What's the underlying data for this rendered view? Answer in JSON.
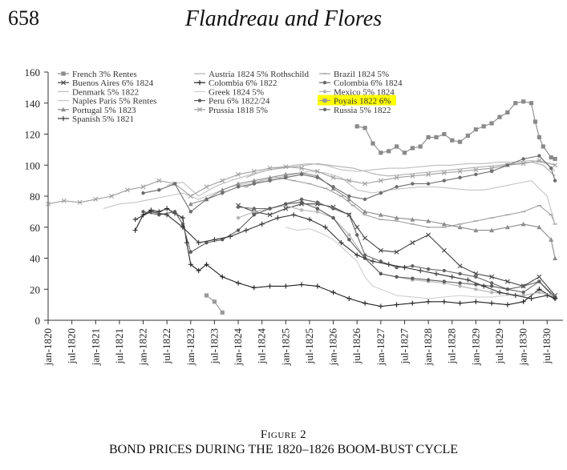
{
  "header": {
    "page_number": "658",
    "running_title": "Flandreau and Flores"
  },
  "figure": {
    "label": "Figure 2",
    "title": "BOND PRICES DURING THE 1820–1826 BOOM-BUST CYCLE"
  },
  "chart_data": {
    "type": "line",
    "title": "",
    "xlabel": "",
    "ylabel": "",
    "ylim": [
      0,
      160
    ],
    "yticks": [
      0,
      20,
      40,
      60,
      80,
      100,
      120,
      140,
      160
    ],
    "xlim": [
      0,
      130
    ],
    "xtick_labels": [
      "jan-1820",
      "jul-1820",
      "jan-1821",
      "jul-1821",
      "jan-1822",
      "jul-1822",
      "jan-1823",
      "jul-1823",
      "jan-1824",
      "jul-1824",
      "jan-1825",
      "jul-1825",
      "jan-1826",
      "jul-1826",
      "jan-1827",
      "jul-1827",
      "jan-1828",
      "jul-1828",
      "jan-1829",
      "jul-1829",
      "jan-1830",
      "jul-1830"
    ],
    "x_unit_note": "x values are months since jan-1820",
    "grid": false,
    "legend_placement": "top-left inside plot",
    "highlight": {
      "series": "Poyais 1822 6%",
      "color": "#ffff00"
    },
    "series": [
      {
        "name": "French 3% Rentes",
        "color": "#8a8a8a",
        "marker": "square",
        "x": [
          78,
          80,
          82,
          84,
          86,
          88,
          90,
          92,
          94,
          96,
          98,
          100,
          102,
          104,
          106,
          108,
          110,
          112,
          114,
          116,
          118,
          120,
          122,
          123,
          124,
          125,
          127,
          128
        ],
        "y": [
          125,
          124,
          114,
          108,
          109,
          112,
          108,
          111,
          112,
          118,
          118,
          120,
          116,
          115,
          119,
          123,
          125,
          127,
          131,
          134,
          140,
          141,
          140,
          128,
          118,
          112,
          105,
          104
        ]
      },
      {
        "name": "Austria 1824 5% Rothschild",
        "color": "#b0b0b0",
        "marker": "none",
        "x": [
          50,
          53,
          56,
          59,
          62,
          65,
          68,
          71,
          74,
          77,
          80,
          83,
          86,
          90,
          94,
          98,
          102,
          106,
          110,
          114,
          118,
          122,
          125,
          128
        ],
        "y": [
          92,
          95,
          97,
          98,
          99,
          100,
          101,
          100,
          99,
          98,
          96,
          94,
          93,
          94,
          95,
          96,
          97,
          98,
          99,
          100,
          101,
          102,
          100,
          93
        ]
      },
      {
        "name": "Brazil 1824 5%",
        "color": "#a0a0a0",
        "marker": "dash",
        "x": [
          50,
          54,
          58,
          62,
          66,
          70,
          74,
          77,
          80,
          84,
          88,
          92,
          96,
          100,
          104,
          108,
          112,
          116,
          120,
          124,
          127,
          128
        ],
        "y": [
          86,
          90,
          92,
          90,
          88,
          85,
          80,
          74,
          68,
          65,
          64,
          62,
          60,
          60,
          62,
          64,
          66,
          68,
          70,
          74,
          68,
          62
        ]
      },
      {
        "name": "Buenos Aires 6% 1824",
        "color": "#444444",
        "marker": "x",
        "x": [
          48,
          52,
          56,
          60,
          64,
          68,
          72,
          76,
          78,
          80,
          84,
          88,
          92,
          96,
          100,
          104,
          108,
          112,
          116,
          120,
          124,
          128
        ],
        "y": [
          74,
          70,
          68,
          72,
          75,
          75,
          73,
          68,
          60,
          53,
          45,
          44,
          50,
          55,
          45,
          35,
          30,
          28,
          25,
          22,
          28,
          16
        ]
      },
      {
        "name": "Colombia 6% 1822",
        "color": "#222222",
        "marker": "plus",
        "x": [
          22,
          24,
          26,
          28,
          30,
          32,
          34,
          35,
          36,
          38,
          40,
          44,
          48,
          52,
          56,
          60,
          64,
          68,
          72,
          76,
          80,
          84,
          88,
          92,
          96,
          100,
          104,
          108,
          112,
          116,
          120,
          124,
          128
        ],
        "y": [
          58,
          68,
          71,
          70,
          72,
          69,
          66,
          50,
          36,
          32,
          36,
          28,
          24,
          21,
          22,
          22,
          23,
          22,
          18,
          14,
          11,
          9,
          10,
          11,
          12,
          12,
          11,
          12,
          11,
          10,
          12,
          20,
          14
        ]
      },
      {
        "name": "Colombia 6% 1824",
        "color": "#666666",
        "marker": "dot",
        "x": [
          48,
          52,
          56,
          60,
          64,
          68,
          72,
          76,
          78,
          80,
          84,
          88,
          92,
          96,
          100,
          104,
          108,
          112,
          116,
          120,
          124,
          128
        ],
        "y": [
          73,
          72,
          72,
          75,
          78,
          76,
          72,
          68,
          55,
          42,
          38,
          34,
          35,
          33,
          32,
          30,
          28,
          24,
          20,
          18,
          25,
          14
        ]
      },
      {
        "name": "Denmark 5% 1822",
        "color": "#bdbdbd",
        "marker": "none",
        "x": [
          30,
          34,
          38,
          42,
          46,
          50,
          54,
          58,
          62,
          66,
          70,
          74,
          78,
          82,
          86,
          90,
          94,
          98,
          102,
          106,
          110,
          114,
          118,
          122,
          126,
          128
        ],
        "y": [
          87,
          89,
          80,
          86,
          90,
          93,
          96,
          98,
          100,
          101,
          100,
          97,
          96,
          97,
          98,
          98,
          99,
          100,
          100,
          101,
          101,
          102,
          102,
          103,
          101,
          96
        ]
      },
      {
        "name": "Greek 1824 5%",
        "color": "#cfcfcf",
        "marker": "none",
        "x": [
          60,
          63,
          66,
          69,
          72,
          75,
          78,
          80,
          82,
          84,
          86,
          88,
          92,
          96,
          100,
          104,
          108,
          112,
          116,
          120,
          124,
          128
        ],
        "y": [
          60,
          58,
          59,
          56,
          52,
          45,
          38,
          28,
          22,
          20,
          18,
          16,
          15,
          14,
          15,
          16,
          15,
          15,
          16,
          16,
          18,
          16
        ]
      },
      {
        "name": "Mexico 5% 1824",
        "color": "#b5b5b5",
        "marker": "dot",
        "x": [
          48,
          52,
          56,
          60,
          64,
          68,
          72,
          76,
          80,
          84,
          88,
          92,
          96,
          100,
          104,
          108,
          112,
          116,
          120,
          124,
          128
        ],
        "y": [
          66,
          70,
          72,
          74,
          71,
          70,
          66,
          55,
          40,
          30,
          28,
          26,
          25,
          24,
          22,
          20,
          18,
          17,
          16,
          18,
          15
        ]
      },
      {
        "name": "Naples Paris 5% Rentes",
        "color": "#c4c4c4",
        "marker": "none",
        "x": [
          14,
          18,
          22,
          26,
          30,
          34,
          38,
          42,
          46,
          50,
          54,
          58,
          62,
          66,
          70,
          74,
          78,
          82,
          86,
          90,
          94,
          98,
          102,
          106,
          110,
          114,
          118,
          122,
          126,
          128
        ],
        "y": [
          72,
          75,
          76,
          78,
          80,
          82,
          78,
          82,
          86,
          88,
          90,
          92,
          94,
          96,
          95,
          92,
          84,
          82,
          84,
          85,
          86,
          86,
          85,
          84,
          84,
          86,
          88,
          90,
          80,
          62
        ]
      },
      {
        "name": "Peru 6% 1822/24",
        "color": "#5c5c5c",
        "marker": "dot",
        "x": [
          24,
          28,
          32,
          34,
          36,
          40,
          44,
          48,
          52,
          56,
          60,
          64,
          68,
          72,
          76,
          80,
          84,
          88,
          92,
          96,
          100,
          104,
          108,
          112,
          116,
          120,
          124,
          128
        ],
        "y": [
          70,
          68,
          70,
          62,
          44,
          50,
          52,
          58,
          68,
          72,
          75,
          76,
          72,
          66,
          52,
          40,
          30,
          28,
          27,
          26,
          25,
          24,
          23,
          22,
          20,
          22,
          25,
          15
        ]
      },
      {
        "name": "Poyais 1822 6%",
        "color": "#9a9a9a",
        "marker": "square",
        "x": [
          40,
          42,
          44
        ],
        "y": [
          16,
          12,
          5
        ]
      },
      {
        "name": "Portugal 5% 1823",
        "color": "#8c8c8c",
        "marker": "triangle",
        "x": [
          36,
          40,
          44,
          48,
          52,
          56,
          60,
          64,
          68,
          72,
          76,
          80,
          84,
          88,
          92,
          96,
          100,
          104,
          108,
          112,
          116,
          120,
          124,
          127,
          128
        ],
        "y": [
          75,
          78,
          84,
          88,
          90,
          92,
          94,
          95,
          93,
          85,
          78,
          70,
          68,
          66,
          65,
          64,
          62,
          60,
          58,
          58,
          60,
          62,
          60,
          52,
          40
        ]
      },
      {
        "name": "Prussia 1818 5%",
        "color": "#9e9e9e",
        "marker": "x",
        "x": [
          0,
          4,
          8,
          12,
          16,
          20,
          24,
          28,
          32,
          36,
          40,
          44,
          48,
          52,
          56,
          60,
          64,
          68,
          72,
          76,
          80,
          84,
          88,
          92,
          96,
          100,
          104,
          108,
          112,
          116,
          120,
          124,
          128
        ],
        "y": [
          75,
          77,
          76,
          78,
          80,
          84,
          86,
          90,
          88,
          80,
          86,
          90,
          94,
          96,
          98,
          99,
          98,
          96,
          92,
          90,
          88,
          90,
          92,
          93,
          94,
          95,
          96,
          97,
          98,
          100,
          101,
          103,
          100
        ]
      },
      {
        "name": "Russia 5% 1822",
        "color": "#6e6e6e",
        "marker": "dot",
        "x": [
          24,
          28,
          32,
          36,
          40,
          44,
          48,
          52,
          56,
          60,
          64,
          68,
          72,
          76,
          80,
          84,
          88,
          92,
          96,
          100,
          104,
          108,
          112,
          116,
          120,
          124,
          127,
          128
        ],
        "y": [
          82,
          84,
          88,
          70,
          78,
          82,
          86,
          88,
          90,
          92,
          94,
          92,
          86,
          80,
          78,
          82,
          86,
          88,
          88,
          90,
          92,
          94,
          96,
          100,
          104,
          106,
          98,
          90
        ]
      },
      {
        "name": "Spanish 5% 1821",
        "color": "#333333",
        "marker": "plus",
        "x": [
          22,
          26,
          30,
          34,
          38,
          42,
          46,
          50,
          54,
          58,
          62,
          66,
          70,
          74,
          78,
          82,
          86,
          90,
          94,
          98,
          102,
          106,
          110,
          114,
          118,
          122,
          126,
          128
        ],
        "y": [
          65,
          70,
          68,
          60,
          50,
          52,
          54,
          58,
          62,
          66,
          68,
          65,
          60,
          50,
          42,
          38,
          36,
          34,
          32,
          30,
          28,
          26,
          22,
          18,
          16,
          14,
          16,
          14
        ]
      }
    ]
  }
}
